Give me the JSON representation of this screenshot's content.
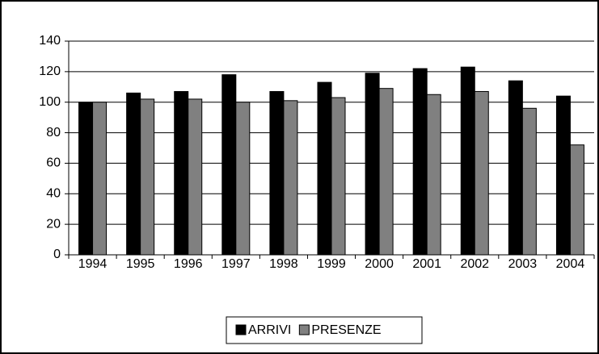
{
  "chart_data": {
    "type": "bar",
    "categories": [
      "1994",
      "1995",
      "1996",
      "1997",
      "1998",
      "1999",
      "2000",
      "2001",
      "2002",
      "2003",
      "2004"
    ],
    "series": [
      {
        "name": "ARRIVI",
        "color": "#000000",
        "values": [
          100,
          106,
          107,
          118,
          107,
          113,
          119,
          122,
          123,
          114,
          104
        ]
      },
      {
        "name": "PRESENZE",
        "color": "#808080",
        "values": [
          100,
          102,
          102,
          100,
          101,
          103,
          109,
          105,
          107,
          96,
          72
        ]
      }
    ],
    "ylim": [
      0,
      140
    ],
    "yticks": [
      0,
      20,
      40,
      60,
      80,
      100,
      120,
      140
    ],
    "grid": true,
    "legend": "bottom"
  }
}
